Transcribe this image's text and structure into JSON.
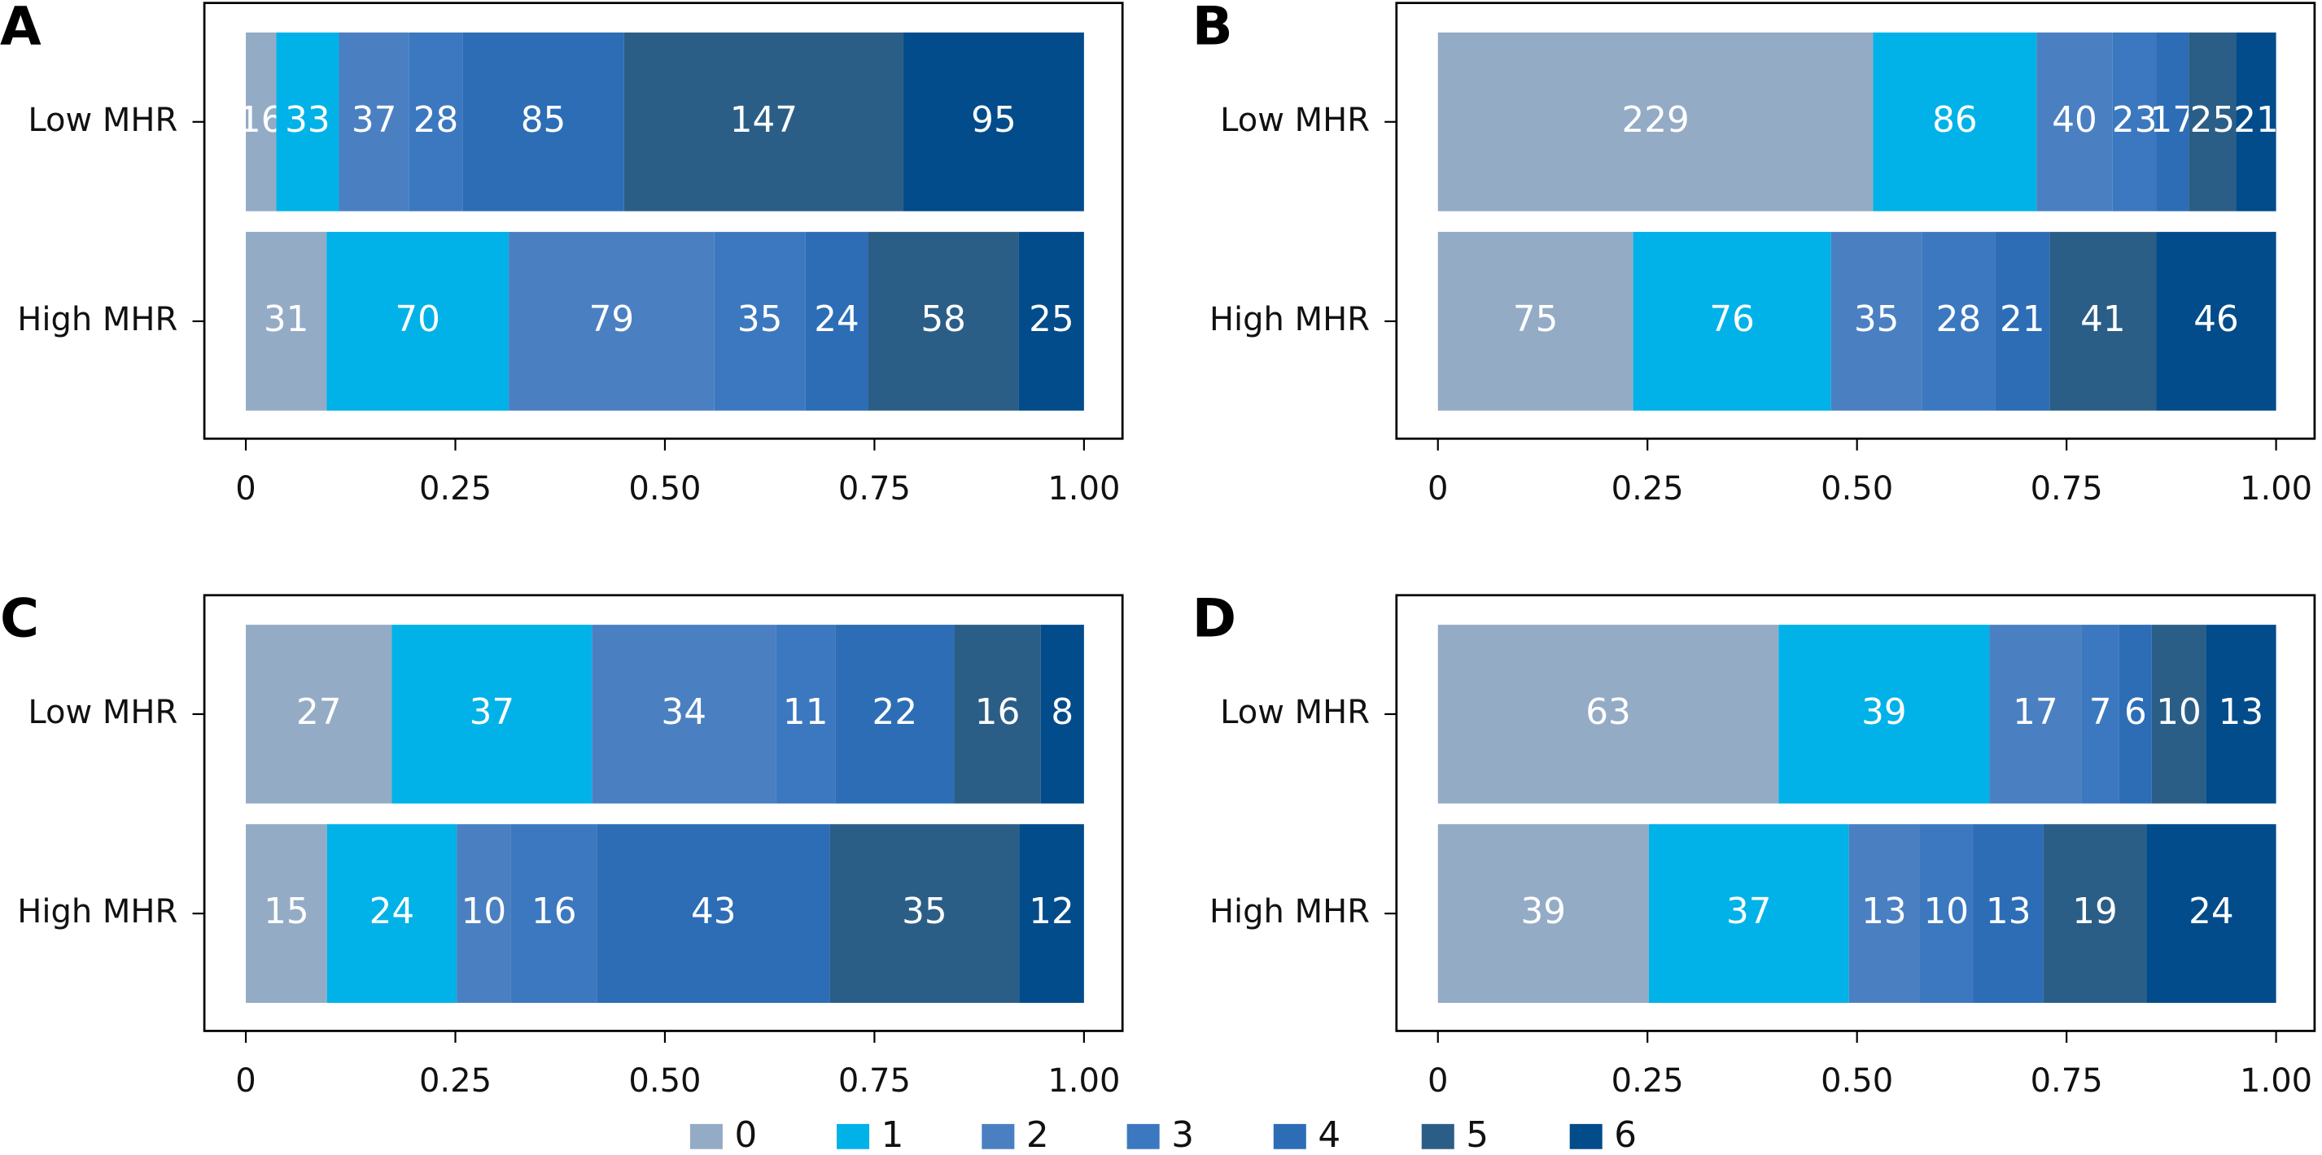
{
  "chart_data": [
    {
      "type": "bar",
      "stacked": "percent",
      "orientation": "horizontal",
      "title": "A",
      "categories": [
        "Low MHR",
        "High MHR"
      ],
      "series": [
        {
          "values": [
            16,
            31
          ]
        },
        {
          "values": [
            33,
            70
          ]
        },
        {
          "values": [
            37,
            79
          ]
        },
        {
          "values": [
            28,
            35
          ]
        },
        {
          "values": [
            85,
            24
          ]
        },
        {
          "values": [
            147,
            58
          ]
        },
        {
          "values": [
            95,
            25
          ]
        }
      ],
      "xlim": [
        0,
        1
      ],
      "xticks": [
        0,
        0.25,
        {
          "value": 0.5,
          "label": "0.50"
        },
        0.75,
        {
          "value": 1,
          "label": "1.00"
        }
      ]
    },
    {
      "type": "bar",
      "stacked": "percent",
      "orientation": "horizontal",
      "title": "B",
      "categories": [
        "Low MHR",
        "High MHR"
      ],
      "series": [
        {
          "values": [
            229,
            75
          ]
        },
        {
          "values": [
            86,
            76
          ]
        },
        {
          "values": [
            40,
            35
          ]
        },
        {
          "values": [
            23,
            28
          ]
        },
        {
          "values": [
            17,
            21
          ]
        },
        {
          "values": [
            25,
            41
          ]
        },
        {
          "values": [
            21,
            46
          ]
        }
      ],
      "xlim": [
        0,
        1
      ],
      "xticks": [
        0,
        0.25,
        {
          "value": 0.5,
          "label": "0.50"
        },
        0.75,
        {
          "value": 1,
          "label": "1.00"
        }
      ]
    },
    {
      "type": "bar",
      "stacked": "percent",
      "orientation": "horizontal",
      "title": "C",
      "categories": [
        "Low MHR",
        "High MHR"
      ],
      "series": [
        {
          "values": [
            27,
            15
          ]
        },
        {
          "values": [
            37,
            24
          ]
        },
        {
          "values": [
            34,
            10
          ]
        },
        {
          "values": [
            11,
            16
          ]
        },
        {
          "values": [
            22,
            43
          ]
        },
        {
          "values": [
            16,
            35
          ]
        },
        {
          "values": [
            8,
            12
          ]
        }
      ],
      "xlim": [
        0,
        1
      ],
      "xticks": [
        0,
        0.25,
        {
          "value": 0.5,
          "label": "0.50"
        },
        0.75,
        {
          "value": 1,
          "label": "1.00"
        }
      ]
    },
    {
      "type": "bar",
      "stacked": "percent",
      "orientation": "horizontal",
      "title": "D",
      "categories": [
        "Low MHR",
        "High MHR"
      ],
      "series": [
        {
          "values": [
            63,
            39
          ]
        },
        {
          "values": [
            39,
            37
          ]
        },
        {
          "values": [
            17,
            13
          ]
        },
        {
          "values": [
            7,
            10
          ]
        },
        {
          "values": [
            6,
            13
          ]
        },
        {
          "values": [
            10,
            19
          ]
        },
        {
          "values": [
            13,
            24
          ]
        }
      ],
      "xlim": [
        0,
        1
      ],
      "xticks": [
        0,
        0.25,
        {
          "value": 0.5,
          "label": "0.50"
        },
        0.75,
        {
          "value": 1,
          "label": "1.00"
        }
      ]
    }
  ],
  "legend": [
    {
      "name": "0",
      "color": "#94abc6"
    },
    {
      "name": "1",
      "color": "#00b2e8"
    },
    {
      "name": "2",
      "color": "#4a80c2"
    },
    {
      "name": "3",
      "color": "#3c78bf"
    },
    {
      "name": "4",
      "color": "#2c6db6"
    },
    {
      "name": "5",
      "color": "#2b5e87"
    },
    {
      "name": "6",
      "color": "#024c8b"
    }
  ]
}
